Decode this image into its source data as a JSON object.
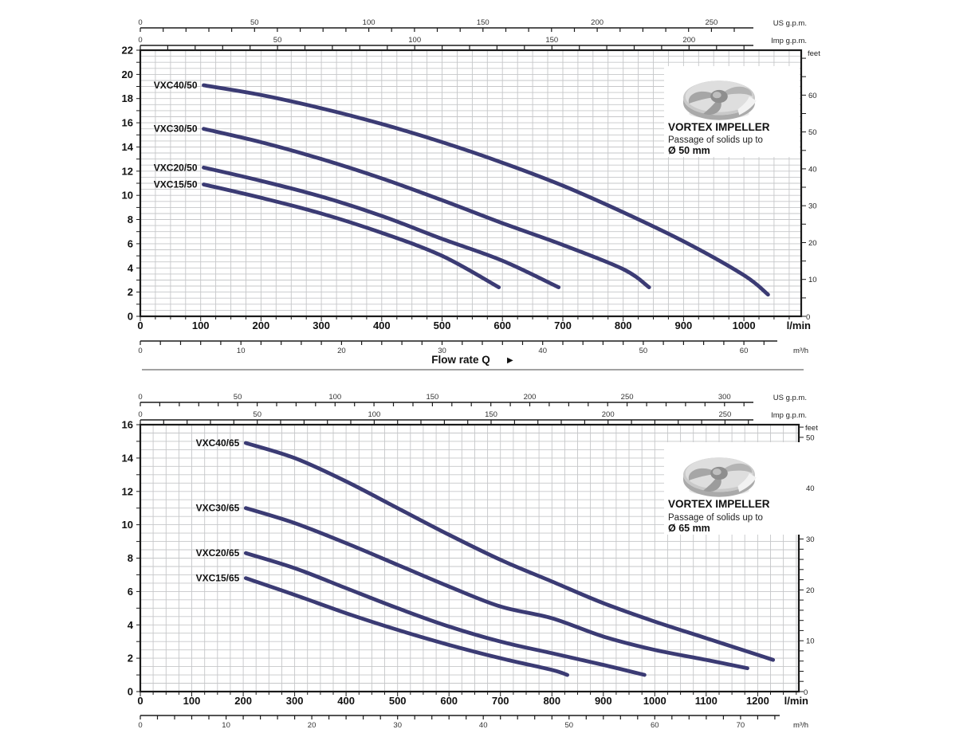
{
  "colors": {
    "curve": "#3b3b74",
    "grid": "#c6c7c9",
    "frame": "#1a1a1a",
    "text": "#111111",
    "separator": "#444444"
  },
  "chart_data": [
    {
      "type": "line",
      "x_lmin": {
        "unit": "l/min",
        "labels": [
          0,
          100,
          200,
          300,
          400,
          500,
          600,
          700,
          800,
          900,
          1000
        ],
        "max": 1095,
        "grid_step": 25,
        "tick_step": 25
      },
      "x_us_gpm": {
        "unit": "US g.p.m.",
        "labels": [
          0,
          50,
          100,
          150,
          200,
          250
        ],
        "tick_step": 10,
        "lmin_per_unit": 3.785
      },
      "x_imp_gpm": {
        "unit": "Imp g.p.m.",
        "labels": [
          0,
          50,
          100,
          150,
          200
        ],
        "tick_step": 10,
        "lmin_per_unit": 4.546
      },
      "x_m3h": {
        "unit": "m³/h",
        "labels": [
          0,
          10,
          20,
          30,
          40,
          50,
          60
        ],
        "tick_step": 2,
        "lmin_per_unit": 16.667
      },
      "y_m": {
        "max": 22,
        "label_step": 2,
        "tick_step": 1,
        "grid_step": 0.5
      },
      "y_ft": {
        "unit": "feet",
        "labels": [
          10,
          20,
          30,
          40,
          50,
          60
        ],
        "tick_step": 5,
        "zero_label": "0",
        "m_per_foot": 0.3048
      },
      "flow_label": {
        "text": "Flow rate  Q",
        "arrow": "▶"
      },
      "impeller_note": {
        "title": "VORTEX IMPELLER",
        "line1": "Passage of solids up to",
        "line2": "Ø 50 mm"
      },
      "series": [
        {
          "name": "VXC40/50",
          "points": [
            [
              105,
              19.1
            ],
            [
              200,
              18.3
            ],
            [
              300,
              17.2
            ],
            [
              400,
              15.9
            ],
            [
              500,
              14.4
            ],
            [
              600,
              12.7
            ],
            [
              700,
              10.8
            ],
            [
              800,
              8.6
            ],
            [
              900,
              6.2
            ],
            [
              1000,
              3.4
            ],
            [
              1040,
              1.8
            ]
          ]
        },
        {
          "name": "VXC30/50",
          "points": [
            [
              105,
              15.5
            ],
            [
              200,
              14.4
            ],
            [
              300,
              13.0
            ],
            [
              400,
              11.4
            ],
            [
              500,
              9.6
            ],
            [
              600,
              7.7
            ],
            [
              700,
              5.9
            ],
            [
              800,
              3.9
            ],
            [
              843,
              2.4
            ]
          ]
        },
        {
          "name": "VXC20/50",
          "points": [
            [
              105,
              12.3
            ],
            [
              200,
              11.2
            ],
            [
              300,
              9.9
            ],
            [
              400,
              8.3
            ],
            [
              500,
              6.4
            ],
            [
              600,
              4.6
            ],
            [
              693,
              2.4
            ]
          ]
        },
        {
          "name": "VXC15/50",
          "points": [
            [
              105,
              10.9
            ],
            [
              200,
              9.8
            ],
            [
              300,
              8.5
            ],
            [
              400,
              6.9
            ],
            [
              500,
              5.0
            ],
            [
              594,
              2.4
            ]
          ]
        }
      ]
    },
    {
      "type": "line",
      "x_lmin": {
        "unit": "l/min",
        "labels": [
          0,
          100,
          200,
          300,
          400,
          500,
          600,
          700,
          800,
          900,
          1000,
          1100,
          1200
        ],
        "max": 1280,
        "grid_step": 25,
        "tick_step": 25
      },
      "x_us_gpm": {
        "unit": "US g.p.m.",
        "labels": [
          0,
          50,
          100,
          150,
          200,
          250,
          300
        ],
        "tick_step": 10,
        "lmin_per_unit": 3.785
      },
      "x_imp_gpm": {
        "unit": "Imp g.p.m.",
        "labels": [
          0,
          50,
          100,
          150,
          200,
          250
        ],
        "tick_step": 10,
        "lmin_per_unit": 4.546
      },
      "x_m3h": {
        "unit": "m³/h",
        "labels": [
          0,
          10,
          20,
          30,
          40,
          50,
          60,
          70
        ],
        "tick_step": 2,
        "lmin_per_unit": 16.667
      },
      "y_m": {
        "max": 16,
        "label_step": 2,
        "tick_step": 1,
        "grid_step": 0.5
      },
      "y_ft": {
        "unit": "feet",
        "labels": [
          10,
          20,
          30,
          40,
          50
        ],
        "tick_step": 2,
        "zero_label": "0",
        "m_per_foot": 0.3048
      },
      "flow_label": null,
      "impeller_note": {
        "title": "VORTEX IMPELLER",
        "line1": "Passage of solids up to",
        "line2": "Ø 65 mm"
      },
      "series": [
        {
          "name": "VXC40/65",
          "points": [
            [
              205,
              14.9
            ],
            [
              300,
              14.0
            ],
            [
              400,
              12.6
            ],
            [
              500,
              11.0
            ],
            [
              600,
              9.4
            ],
            [
              700,
              7.9
            ],
            [
              800,
              6.6
            ],
            [
              900,
              5.3
            ],
            [
              1000,
              4.2
            ],
            [
              1100,
              3.2
            ],
            [
              1200,
              2.2
            ],
            [
              1230,
              1.9
            ]
          ]
        },
        {
          "name": "VXC30/65",
          "points": [
            [
              205,
              11.0
            ],
            [
              300,
              10.1
            ],
            [
              400,
              8.9
            ],
            [
              500,
              7.6
            ],
            [
              600,
              6.3
            ],
            [
              700,
              5.1
            ],
            [
              800,
              4.4
            ],
            [
              900,
              3.3
            ],
            [
              1000,
              2.5
            ],
            [
              1100,
              1.9
            ],
            [
              1180,
              1.4
            ]
          ]
        },
        {
          "name": "VXC20/65",
          "points": [
            [
              205,
              8.3
            ],
            [
              300,
              7.4
            ],
            [
              400,
              6.2
            ],
            [
              500,
              5.0
            ],
            [
              600,
              3.9
            ],
            [
              700,
              3.0
            ],
            [
              800,
              2.3
            ],
            [
              900,
              1.6
            ],
            [
              980,
              1.0
            ]
          ]
        },
        {
          "name": "VXC15/65",
          "points": [
            [
              205,
              6.8
            ],
            [
              300,
              5.8
            ],
            [
              400,
              4.7
            ],
            [
              500,
              3.7
            ],
            [
              600,
              2.8
            ],
            [
              700,
              2.0
            ],
            [
              800,
              1.3
            ],
            [
              830,
              1.0
            ]
          ]
        }
      ]
    }
  ]
}
